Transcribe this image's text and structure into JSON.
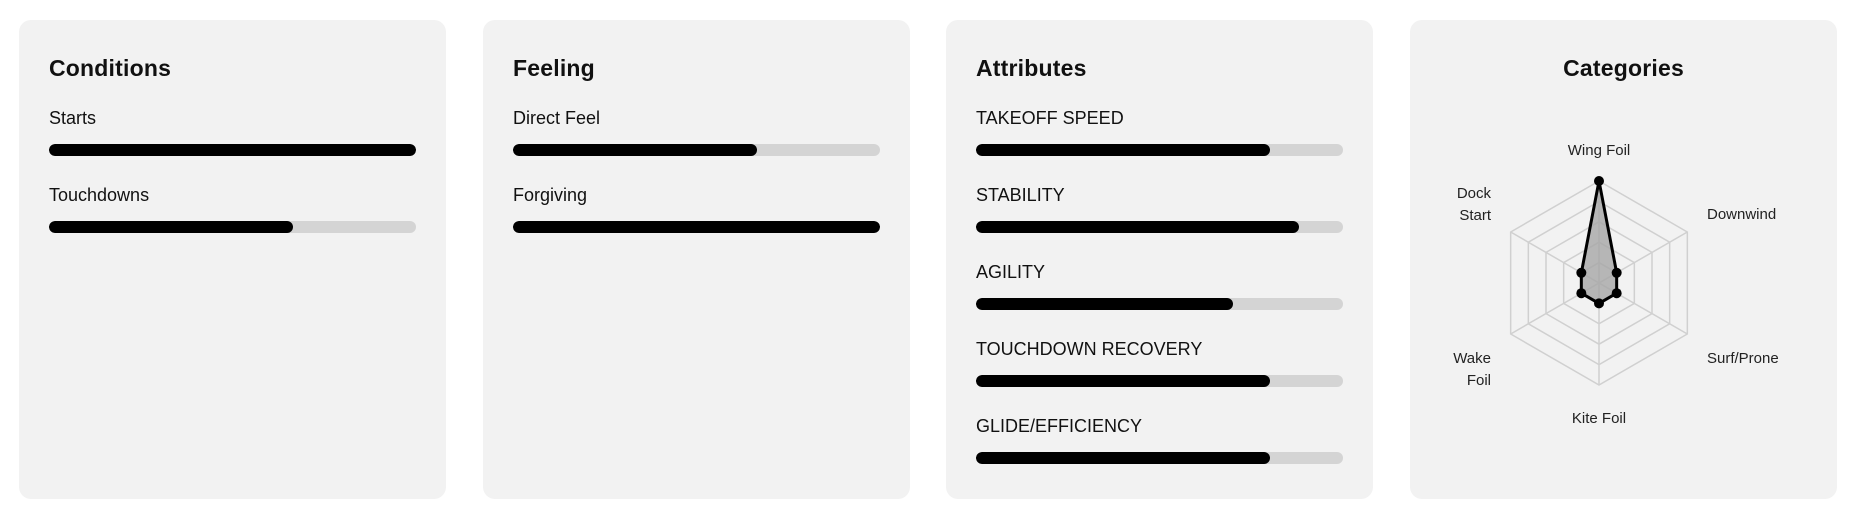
{
  "colors": {
    "card_bg": "#f2f2f2",
    "track": "#d4d4d4",
    "fill": "#000000",
    "radar_fill": "#a6a6a6",
    "grid": "#d0d0d0"
  },
  "cards": [
    {
      "title": "Conditions",
      "bars": [
        {
          "label": "Starts",
          "value": 1.0
        },
        {
          "label": "Touchdowns",
          "value": 0.665
        }
      ]
    },
    {
      "title": "Feeling",
      "bars": [
        {
          "label": "Direct Feel",
          "value": 0.665
        },
        {
          "label": "Forgiving",
          "value": 1.0
        }
      ]
    },
    {
      "title": "Attributes",
      "bars": [
        {
          "label": "TAKEOFF SPEED",
          "value": 0.8
        },
        {
          "label": "STABILITY",
          "value": 0.88
        },
        {
          "label": "AGILITY",
          "value": 0.7
        },
        {
          "label": "TOUCHDOWN RECOVERY",
          "value": 0.8
        },
        {
          "label": "GLIDE/EFFICIENCY",
          "value": 0.8
        }
      ]
    }
  ],
  "categories": {
    "title": "Categories",
    "chart_data": {
      "type": "radar",
      "max": 5,
      "grid_levels": 5,
      "axes": [
        {
          "label": [
            "Wing Foil"
          ],
          "value": 5
        },
        {
          "label": [
            "Downwind"
          ],
          "value": 1
        },
        {
          "label": [
            "Surf/Prone"
          ],
          "value": 1
        },
        {
          "label": [
            "Kite Foil"
          ],
          "value": 1
        },
        {
          "label": [
            "Wake",
            "Foil"
          ],
          "value": 1
        },
        {
          "label": [
            "Dock",
            "Start"
          ],
          "value": 1
        }
      ]
    }
  }
}
